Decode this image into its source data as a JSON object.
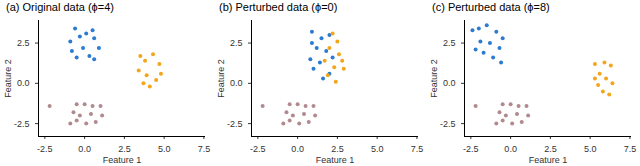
{
  "chart_data": [
    {
      "type": "scatter",
      "title": "(a) Original data (ϕ=4)",
      "x_label": "Feature 1",
      "y_label": "Feature 2",
      "xlim": [
        -2.9,
        7.6
      ],
      "ylim": [
        -3.3,
        3.9
      ],
      "xticks": [
        -2.5,
        {
          "value": 0,
          "label": "0.0"
        },
        2.5,
        {
          "value": 5,
          "label": "5.0"
        },
        7.5
      ],
      "yticks": [
        -2.5,
        {
          "value": 0,
          "label": "0.0"
        },
        2.5
      ],
      "series": [
        {
          "color": "#2b7bd1",
          "x": [
            -0.9,
            -0.6,
            -0.3,
            0.1,
            0.6,
            0.9,
            -0.5,
            0.3,
            -0.1,
            0.5,
            -0.8,
            0.6
          ],
          "y": [
            2.6,
            3.4,
            2.9,
            3.1,
            2.8,
            2.2,
            1.6,
            1.7,
            2.2,
            3.3,
            2.0,
            1.5
          ]
        },
        {
          "color": "#f3a51b",
          "x": [
            3.4,
            3.8,
            4.3,
            4.7,
            3.9,
            4.5,
            4.1,
            3.5,
            4.8,
            3.7
          ],
          "y": [
            0.8,
            1.4,
            1.8,
            1.2,
            0.5,
            0.2,
            -0.2,
            1.7,
            0.6,
            0.0
          ]
        },
        {
          "color": "#b08a8f",
          "x": [
            -2.2,
            -0.5,
            0.0,
            0.5,
            1.0,
            -0.7,
            -0.3,
            0.4,
            -0.5,
            0.1,
            0.7,
            1.1,
            -0.9
          ],
          "y": [
            -1.4,
            -1.3,
            -1.3,
            -1.4,
            -1.4,
            -1.8,
            -2.0,
            -1.9,
            -2.3,
            -2.5,
            -2.4,
            -2.0,
            -2.5
          ]
        }
      ]
    },
    {
      "type": "scatter",
      "title": "(b) Perturbed data (ϕ=0)",
      "x_label": "Feature 1",
      "y_label": "Feature 2",
      "xlim": [
        -2.9,
        7.6
      ],
      "ylim": [
        -3.3,
        3.9
      ],
      "xticks": [
        -2.5,
        {
          "value": 0,
          "label": "0.0"
        },
        2.5,
        {
          "value": 5,
          "label": "5.0"
        },
        7.5
      ],
      "yticks": [
        -2.5,
        {
          "value": 0,
          "label": "0.0"
        },
        2.5
      ],
      "series": [
        {
          "color": "#2b7bd1",
          "x": [
            0.9,
            1.5,
            2.0,
            1.2,
            1.8,
            0.8,
            1.4,
            2.2,
            1.0,
            2.0,
            1.6,
            0.9
          ],
          "y": [
            3.2,
            2.8,
            3.0,
            2.2,
            2.0,
            1.5,
            1.3,
            1.6,
            0.9,
            0.6,
            0.3,
            2.5
          ]
        },
        {
          "color": "#f3a51b",
          "x": [
            2.2,
            2.5,
            2.0,
            2.6,
            1.7,
            2.3,
            2.9,
            1.9,
            2.4,
            2.8
          ],
          "y": [
            3.1,
            2.6,
            2.2,
            1.8,
            1.4,
            1.0,
            0.9,
            0.5,
            0.1,
            1.4
          ]
        },
        {
          "color": "#b08a8f",
          "x": [
            -2.2,
            -0.5,
            0.0,
            0.5,
            1.0,
            -0.7,
            -0.3,
            0.4,
            -0.5,
            0.1,
            0.7,
            1.1,
            -0.9
          ],
          "y": [
            -1.4,
            -1.3,
            -1.3,
            -1.4,
            -1.4,
            -1.8,
            -2.0,
            -1.9,
            -2.3,
            -2.5,
            -2.4,
            -2.0,
            -2.5
          ]
        }
      ]
    },
    {
      "type": "scatter",
      "title": "(c) Perturbed data (ϕ=8)",
      "x_label": "Feature 1",
      "y_label": "Feature 2",
      "xlim": [
        -2.9,
        7.6
      ],
      "ylim": [
        -3.3,
        3.9
      ],
      "xticks": [
        -2.5,
        {
          "value": 0,
          "label": "0.0"
        },
        2.5,
        {
          "value": 5,
          "label": "5.0"
        },
        7.5
      ],
      "yticks": [
        -2.5,
        {
          "value": 0,
          "label": "0.0"
        },
        2.5
      ],
      "series": [
        {
          "color": "#2b7bd1",
          "x": [
            -2.4,
            -2.0,
            -1.5,
            -0.9,
            -0.5,
            -1.9,
            -1.3,
            -0.7,
            -1.7,
            -1.1,
            -0.6,
            -2.2
          ],
          "y": [
            3.3,
            3.4,
            3.6,
            3.2,
            2.8,
            2.6,
            2.5,
            2.2,
            1.9,
            1.6,
            1.3,
            2.1
          ]
        },
        {
          "color": "#f3a51b",
          "x": [
            5.3,
            5.9,
            6.3,
            5.6,
            6.0,
            6.4,
            5.5,
            5.8,
            6.2,
            5.3
          ],
          "y": [
            1.2,
            1.3,
            1.1,
            0.6,
            0.3,
            0.0,
            -0.1,
            -0.5,
            -0.7,
            0.3
          ]
        },
        {
          "color": "#b08a8f",
          "x": [
            -2.2,
            -0.5,
            0.0,
            0.5,
            1.0,
            -0.7,
            -0.3,
            0.4,
            -0.5,
            0.1,
            0.7,
            1.1,
            -0.9
          ],
          "y": [
            -1.4,
            -1.3,
            -1.3,
            -1.4,
            -1.4,
            -1.8,
            -2.0,
            -1.9,
            -2.3,
            -2.5,
            -2.4,
            -2.0,
            -2.5
          ]
        }
      ]
    }
  ]
}
